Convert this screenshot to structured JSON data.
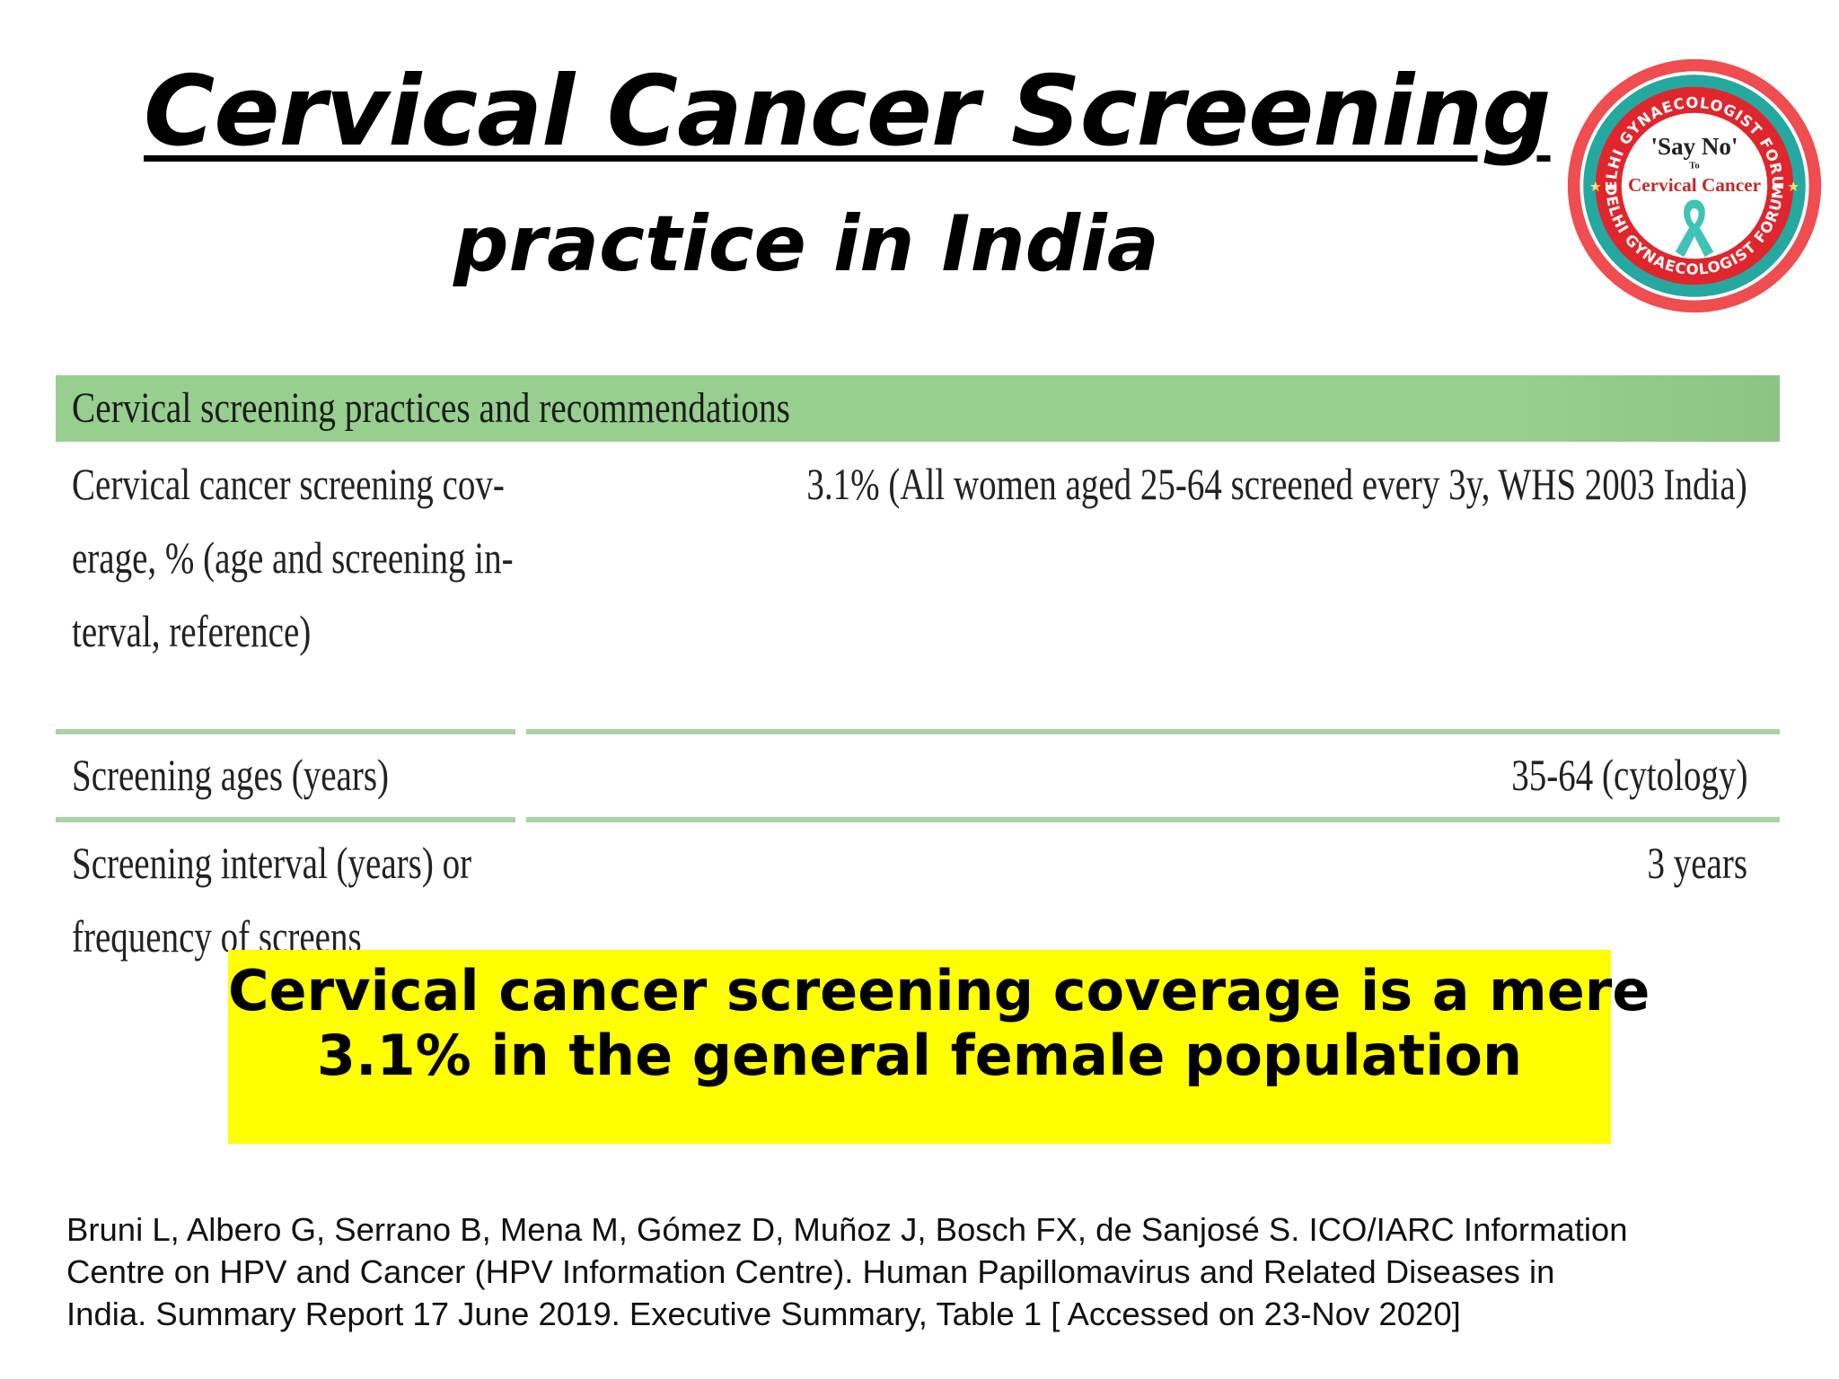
{
  "slide": {
    "title": "Cervical Cancer Screening",
    "subtitle": "practice in India"
  },
  "logo": {
    "ring_text_top": "DELHI GYNAECOLOGIST FORUM",
    "ring_text_bottom": "DELHI GYNAECOLOGIST FORUM",
    "line_1": "'Say No'",
    "line_2": "To",
    "line_3": "Cervical Cancer",
    "colors": {
      "outer": "#e8353b",
      "ring": "#e0262c",
      "teal": "#22a59d",
      "ribbon": "#3fc2b7",
      "accent_text": "#c62828"
    },
    "icons": [
      "awareness-ribbon-icon",
      "star-icon"
    ]
  },
  "table": {
    "header": "Cervical screening practices and recommendations",
    "rows": [
      {
        "label_lines": [
          "Cervical cancer screening cov-",
          "erage, % (age and screening in-",
          "terval, reference)"
        ],
        "value": "3.1% (All women aged 25-64 screened every 3y, WHS 2003 India)"
      },
      {
        "label_lines": [
          "Screening ages (years)"
        ],
        "value": "35-64 (cytology)"
      },
      {
        "label_lines": [
          "Screening interval (years) or",
          "frequency of screens"
        ],
        "value": "3 years"
      }
    ],
    "colors": {
      "header_bg": "#97cf8f",
      "rule": "#a9d4a2"
    }
  },
  "callout": {
    "line_1": "Cervical cancer screening coverage is a mere",
    "line_2": "3.1% in the general female population",
    "background": "#ffff00"
  },
  "reference": {
    "lines": [
      "Bruni L, Albero G, Serrano B, Mena M, Gómez D, Muñoz J, Bosch FX, de Sanjosé S. ICO/IARC Information",
      "Centre on HPV and Cancer (HPV Information Centre). Human Papillomavirus and Related Diseases in",
      "India. Summary Report 17 June 2019. Executive Summary, Table 1 [ Accessed on 23-Nov 2020]"
    ]
  }
}
